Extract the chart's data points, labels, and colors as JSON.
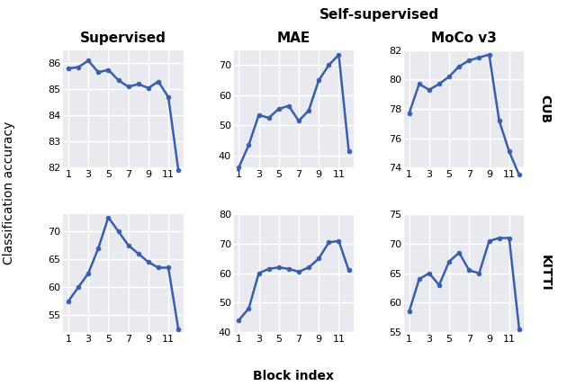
{
  "x": [
    1,
    2,
    3,
    4,
    5,
    6,
    7,
    8,
    9,
    10,
    11,
    12
  ],
  "x_ticks": [
    1,
    3,
    5,
    7,
    9,
    11
  ],
  "supervised_cub": [
    85.8,
    85.85,
    86.1,
    85.65,
    85.75,
    85.35,
    85.1,
    85.2,
    85.05,
    85.3,
    84.7,
    81.9
  ],
  "supervised_kitti": [
    57.5,
    60.0,
    62.5,
    67.0,
    72.5,
    70.0,
    67.5,
    66.0,
    64.5,
    63.5,
    63.5,
    52.5
  ],
  "mae_cub": [
    36.0,
    43.5,
    53.5,
    52.5,
    55.5,
    56.5,
    51.5,
    55.0,
    65.0,
    70.0,
    73.5,
    41.5
  ],
  "mae_kitti": [
    44.0,
    48.0,
    60.0,
    61.5,
    62.0,
    61.5,
    60.5,
    62.0,
    65.0,
    70.5,
    71.0,
    61.0
  ],
  "moco_cub": [
    77.7,
    79.7,
    79.3,
    79.7,
    80.2,
    80.9,
    81.3,
    81.5,
    81.7,
    77.2,
    75.1,
    73.5
  ],
  "moco_kitti": [
    58.5,
    64.0,
    65.0,
    63.0,
    67.0,
    68.5,
    65.5,
    65.0,
    70.5,
    71.0,
    71.0,
    55.5
  ],
  "line_color": "#3a5fa8",
  "marker_size": 3.5,
  "line_width": 1.8,
  "bg_color": "#e8eaf0",
  "grid_color": "white",
  "title_supervised": "Supervised",
  "title_selfsup": "Self-supervised",
  "title_mae": "MAE",
  "title_moco": "MoCo v3",
  "ylabel_cub": "CUB",
  "ylabel_kitti": "KITTI",
  "xlabel": "Block index",
  "overall_ylabel": "Classification accuracy",
  "ylim_sup_cub": [
    82.0,
    86.5
  ],
  "ylim_sup_kitti": [
    52.0,
    73.0
  ],
  "ylim_mae_cub": [
    36.0,
    75.0
  ],
  "ylim_mae_kitti": [
    40.0,
    80.0
  ],
  "ylim_moco_cub": [
    74.0,
    82.0
  ],
  "ylim_moco_kitti": [
    55.0,
    75.0
  ]
}
